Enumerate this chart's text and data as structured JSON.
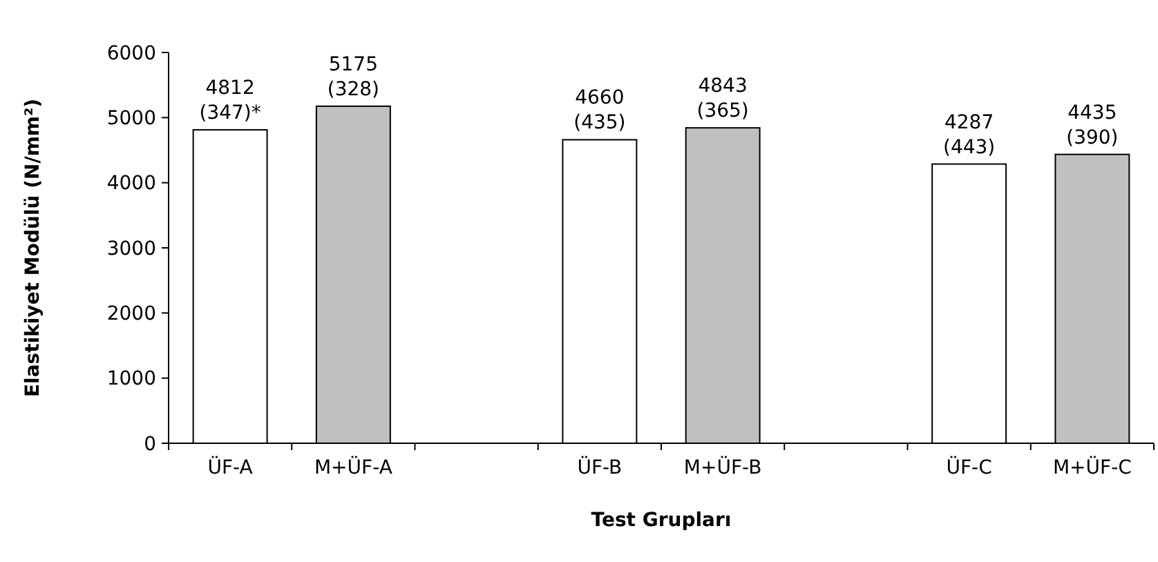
{
  "chart_data": {
    "type": "bar",
    "xlabel": "Test Grupları",
    "ylabel": "Elastikiyet Modülü (N/mm²)",
    "categories": [
      "ÜF-A",
      "M+ÜF-A",
      null,
      "ÜF-B",
      "M+ÜF-B",
      null,
      "ÜF-C",
      "M+ÜF-C"
    ],
    "values": [
      4812,
      5175,
      null,
      4660,
      4843,
      null,
      4287,
      4435
    ],
    "colors": [
      "#ffffff",
      "#c0c0c0",
      null,
      "#ffffff",
      "#c0c0c0",
      null,
      "#ffffff",
      "#c0c0c0"
    ],
    "value_labels": [
      "4812\n(347)*",
      "5175\n(328)",
      null,
      "4660\n(435)",
      "4843\n(365)",
      null,
      "4287\n(443)",
      "4435\n(390)"
    ],
    "ylim": [
      0,
      6000
    ],
    "yticks": [
      0,
      1000,
      2000,
      3000,
      4000,
      5000,
      6000
    ]
  }
}
